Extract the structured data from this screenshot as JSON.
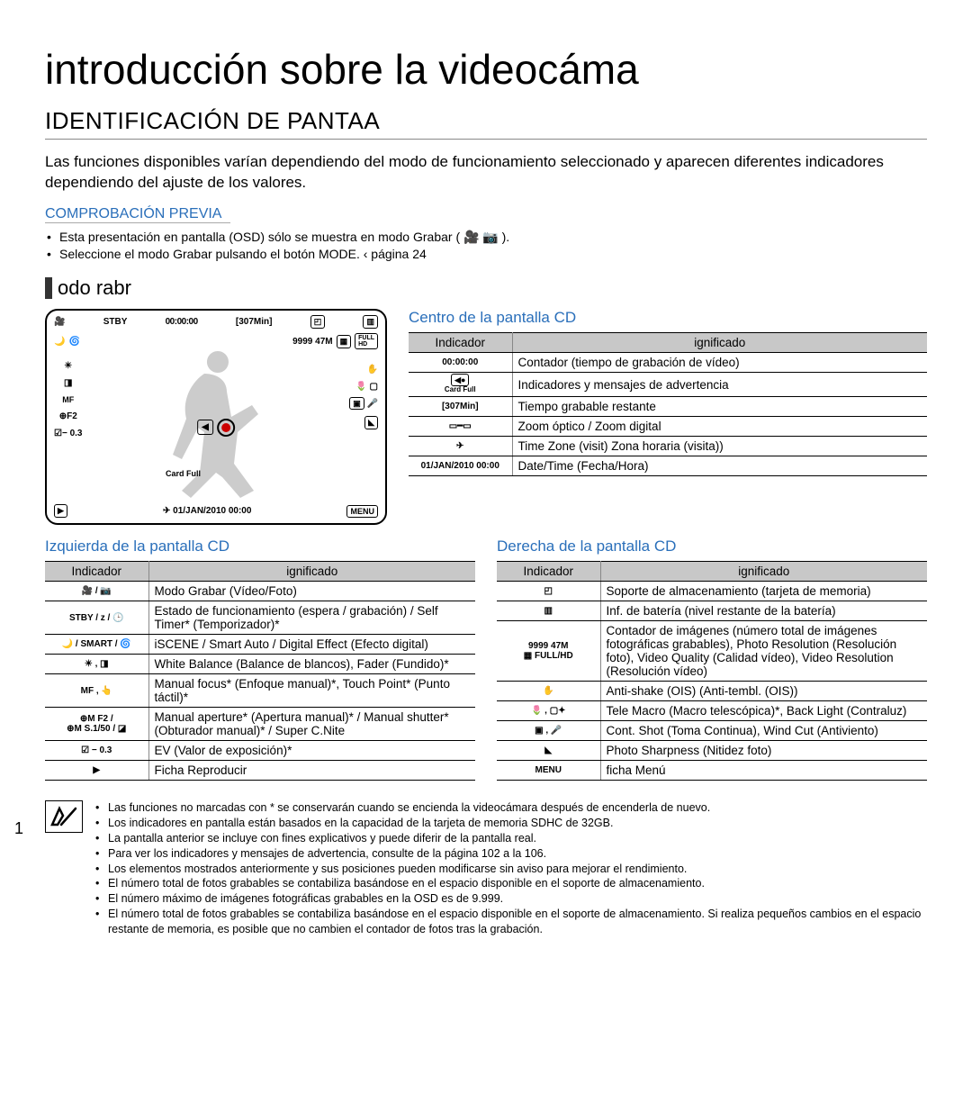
{
  "title": "introducción sobre la videocáma",
  "section": "IDENTIFICACIÓN DE PANTAA",
  "intro": "Las funciones disponibles varían dependiendo del modo de funcionamiento seleccionado y aparecen diferentes indicadores dependiendo del ajuste de los valores.",
  "precheck_label": "COMPROBACIÓN PREVIA",
  "precheck_items": [
    "Esta presentación en pantalla (OSD) sólo se muestra en modo Grabar ( 🎥 📷 ).",
    "Seleccione el modo Grabar pulsando el botón MODE.  ‹ página 24"
  ],
  "mode_heading": "odo rabr",
  "lcd": {
    "stby": "STBY",
    "counter": "00:00:00",
    "remain": "[307Min]",
    "photos": "9999 47M",
    "f2": "F2",
    "ev": "− 0.3",
    "cardfull": "Card Full",
    "date": "01/JAN/2010 00:00",
    "menu": "MENU"
  },
  "tables": {
    "header_ind": "Indicador",
    "header_sig": "ignificado",
    "center_title": "Centro de la pantalla CD",
    "center_rows": [
      {
        "ind_txt": "00:00:00",
        "sig": "Contador (tiempo de grabación de vídeo)"
      },
      {
        "ind_txt": "Card Full",
        "ind_icon": "◀●",
        "sig": "Indicadores y mensajes de advertencia"
      },
      {
        "ind_txt": "[307Min]",
        "sig": "Tiempo grabable restante"
      },
      {
        "ind_txt": "▭━▭",
        "sig": "Zoom óptico / Zoom digital"
      },
      {
        "ind_txt": "✈",
        "sig": "Time Zone (visit) Zona horaria (visita))"
      },
      {
        "ind_txt": "01/JAN/2010 00:00",
        "sig": "Date/Time (Fecha/Hora)"
      }
    ],
    "left_title": "Izquierda de la pantalla CD",
    "left_rows": [
      {
        "ind": "🎥 / 📷",
        "sig": "Modo Grabar (Vídeo/Foto)"
      },
      {
        "ind": "STBY / z / 🕒",
        "sig": "Estado de funcionamiento (espera / grabación) / Self Timer* (Temporizador)*"
      },
      {
        "ind": "🌙 / SMART / 🌀",
        "sig": "iSCENE / Smart Auto / Digital Effect (Efecto digital)"
      },
      {
        "ind": "☀ , ◨",
        "sig": "White Balance (Balance de blancos), Fader (Fundido)*"
      },
      {
        "ind": "MF , 👆",
        "sig": "Manual focus* (Enfoque manual)*, Touch Point* (Punto táctil)*"
      },
      {
        "ind": "⊕M F2 /\n⊕M S.1/50 / ◪",
        "sig": "Manual aperture* (Apertura manual)* / Manual shutter* (Obturador manual)* / Super C.Nite"
      },
      {
        "ind": "☑ − 0.3",
        "sig": "EV (Valor de exposición)*"
      },
      {
        "ind": "▶",
        "sig": "Ficha Reproducir"
      }
    ],
    "right_title": "Derecha de la pantalla CD",
    "right_rows": [
      {
        "ind": "◰",
        "sig": "Soporte de almacenamiento (tarjeta de memoria)"
      },
      {
        "ind": "▥",
        "sig": "Inf. de batería (nivel restante de la batería)"
      },
      {
        "ind": "9999 47M\n▦ FULL/HD",
        "sig": "Contador de imágenes (número total de imágenes fotográficas grabables), Photo Resolution (Resolución foto), Video Quality (Calidad vídeo), Video Resolution (Resolución vídeo)"
      },
      {
        "ind": "✋",
        "sig": "Anti-shake (OIS) (Anti-tembl. (OIS))"
      },
      {
        "ind": "🌷 , ▢✦",
        "sig": "Tele Macro (Macro telescópica)*, Back Light (Contraluz)"
      },
      {
        "ind": "▣ , 🎤",
        "sig": "Cont. Shot (Toma Continua), Wind Cut (Antiviento)"
      },
      {
        "ind": "◣",
        "sig": "Photo Sharpness (Nitidez foto)"
      },
      {
        "ind": "MENU",
        "sig": "ficha Menú"
      }
    ]
  },
  "notes": [
    "Las funciones no marcadas con * se conservarán cuando se encienda la videocámara después de encenderla de nuevo.",
    "Los indicadores en pantalla están basados en la capacidad de la tarjeta de memoria SDHC de 32GB.",
    "La pantalla anterior se incluye con fines explicativos y puede diferir de la pantalla real.",
    "Para ver los indicadores y mensajes de advertencia, consulte de la página 102 a la 106.",
    "Los elementos mostrados anteriormente y sus posiciones pueden modificarse sin aviso para mejorar el rendimiento.",
    "El número total de fotos grabables se contabiliza basándose en el espacio disponible en el soporte de almacenamiento.",
    "El número máximo de imágenes fotográficas grabables en la OSD es de 9.999.",
    "El número total de fotos grabables se contabiliza basándose en el espacio disponible en el soporte de almacenamiento. Si realiza pequeños cambios en el espacio restante de memoria, es posible que no cambien el contador de fotos tras la grabación."
  ],
  "page_number": "1",
  "colors": {
    "blue": "#2a6fba",
    "header_bg": "#c8c8c8"
  }
}
